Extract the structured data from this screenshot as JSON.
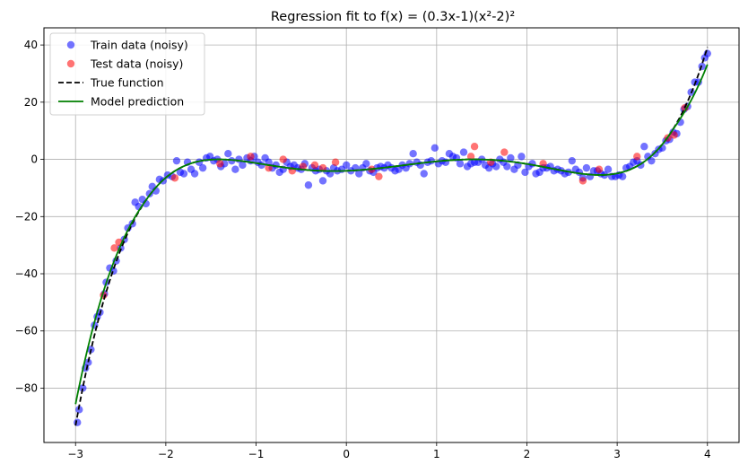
{
  "chart_data": {
    "type": "scatter",
    "title": "Regression fit to f(x) = (0.3x-1)(x²-2)²",
    "xlabel": "",
    "ylabel": "",
    "xlim": [
      -3.35,
      4.35
    ],
    "ylim": [
      -99,
      46
    ],
    "xticks": [
      -3,
      -2,
      -1,
      0,
      1,
      2,
      3,
      4
    ],
    "xtick_labels": [
      "−3",
      "−2",
      "−1",
      "0",
      "1",
      "2",
      "3",
      "4"
    ],
    "yticks": [
      -80,
      -60,
      -40,
      -20,
      0,
      20,
      40
    ],
    "ytick_labels": [
      "−80",
      "−60",
      "−40",
      "−20",
      "0",
      "20",
      "40"
    ],
    "grid": true,
    "legend_position": "top-left",
    "colors": {
      "train": "#0000ff",
      "test": "#ff0000",
      "true": "#000000",
      "model": "#008000",
      "grid": "#b0b0b0"
    },
    "series": [
      {
        "name": "Train data (noisy)",
        "kind": "scatter",
        "points": [
          [
            -2.98,
            -92
          ],
          [
            -2.96,
            -87.5
          ],
          [
            -2.92,
            -80
          ],
          [
            -2.89,
            -73
          ],
          [
            -2.86,
            -71
          ],
          [
            -2.83,
            -66.5
          ],
          [
            -2.79,
            -58
          ],
          [
            -2.76,
            -55
          ],
          [
            -2.73,
            -53.5
          ],
          [
            -2.68,
            -47
          ],
          [
            -2.66,
            -43
          ],
          [
            -2.62,
            -38
          ],
          [
            -2.58,
            -39
          ],
          [
            -2.55,
            -35.5
          ],
          [
            -2.5,
            -31
          ],
          [
            -2.46,
            -28
          ],
          [
            -2.42,
            -24
          ],
          [
            -2.37,
            -22.5
          ],
          [
            -2.34,
            -15
          ],
          [
            -2.3,
            -16.5
          ],
          [
            -2.26,
            -14
          ],
          [
            -2.22,
            -15.5
          ],
          [
            -2.18,
            -12
          ],
          [
            -2.15,
            -9.5
          ],
          [
            -2.11,
            -11
          ],
          [
            -2.07,
            -7
          ],
          [
            -2.03,
            -7.5
          ],
          [
            -1.98,
            -5.5
          ],
          [
            -1.93,
            -6
          ],
          [
            -1.88,
            -0.5
          ],
          [
            -1.84,
            -4.5
          ],
          [
            -1.8,
            -5
          ],
          [
            -1.76,
            -1
          ],
          [
            -1.72,
            -3.5
          ],
          [
            -1.68,
            -5
          ],
          [
            -1.63,
            -1
          ],
          [
            -1.59,
            -3
          ],
          [
            -1.55,
            0.5
          ],
          [
            -1.51,
            1
          ],
          [
            -1.47,
            -0.5
          ],
          [
            -1.43,
            0
          ],
          [
            -1.39,
            -2.5
          ],
          [
            -1.35,
            -1.5
          ],
          [
            -1.31,
            2
          ],
          [
            -1.27,
            -0.5
          ],
          [
            -1.23,
            -3.5
          ],
          [
            -1.19,
            0
          ],
          [
            -1.15,
            -2
          ],
          [
            -1.1,
            0.5
          ],
          [
            -1.06,
            -0.5
          ],
          [
            -1.02,
            1
          ],
          [
            -0.98,
            -1
          ],
          [
            -0.94,
            -2
          ],
          [
            -0.9,
            0.5
          ],
          [
            -0.86,
            -1
          ],
          [
            -0.82,
            -3
          ],
          [
            -0.78,
            -2
          ],
          [
            -0.74,
            -4.5
          ],
          [
            -0.7,
            -3.5
          ],
          [
            -0.66,
            -1
          ],
          [
            -0.62,
            -2.5
          ],
          [
            -0.58,
            -2
          ],
          [
            -0.54,
            -3
          ],
          [
            -0.5,
            -3.5
          ],
          [
            -0.46,
            -1.5
          ],
          [
            -0.42,
            -9
          ],
          [
            -0.38,
            -3
          ],
          [
            -0.34,
            -4
          ],
          [
            -0.3,
            -3.5
          ],
          [
            -0.26,
            -7.5
          ],
          [
            -0.22,
            -4
          ],
          [
            -0.18,
            -5
          ],
          [
            -0.14,
            -3
          ],
          [
            -0.1,
            -4
          ],
          [
            -0.05,
            -3.5
          ],
          [
            0.0,
            -2
          ],
          [
            0.05,
            -4
          ],
          [
            0.1,
            -3
          ],
          [
            0.14,
            -5
          ],
          [
            0.18,
            -3
          ],
          [
            0.22,
            -1.5
          ],
          [
            0.26,
            -4
          ],
          [
            0.3,
            -4.5
          ],
          [
            0.34,
            -3
          ],
          [
            0.38,
            -2.5
          ],
          [
            0.42,
            -3
          ],
          [
            0.46,
            -2
          ],
          [
            0.5,
            -3
          ],
          [
            0.54,
            -4
          ],
          [
            0.58,
            -3.5
          ],
          [
            0.62,
            -2
          ],
          [
            0.66,
            -3
          ],
          [
            0.7,
            -1.5
          ],
          [
            0.74,
            2
          ],
          [
            0.78,
            -1
          ],
          [
            0.82,
            -2
          ],
          [
            0.86,
            -5
          ],
          [
            0.9,
            -1
          ],
          [
            0.94,
            -0.5
          ],
          [
            0.98,
            4
          ],
          [
            1.02,
            -1.5
          ],
          [
            1.06,
            -0.5
          ],
          [
            1.1,
            -1
          ],
          [
            1.14,
            2
          ],
          [
            1.18,
            1
          ],
          [
            1.22,
            0.5
          ],
          [
            1.26,
            -1.5
          ],
          [
            1.3,
            2.5
          ],
          [
            1.34,
            -2.5
          ],
          [
            1.38,
            -1.5
          ],
          [
            1.42,
            -1
          ],
          [
            1.46,
            -1
          ],
          [
            1.5,
            0
          ],
          [
            1.54,
            -2
          ],
          [
            1.58,
            -3
          ],
          [
            1.62,
            -1.5
          ],
          [
            1.66,
            -2.5
          ],
          [
            1.7,
            0
          ],
          [
            1.74,
            -1
          ],
          [
            1.78,
            -2.5
          ],
          [
            1.82,
            0.5
          ],
          [
            1.86,
            -3.5
          ],
          [
            1.9,
            -2
          ],
          [
            1.94,
            1
          ],
          [
            1.98,
            -4.5
          ],
          [
            2.02,
            -2.5
          ],
          [
            2.06,
            -1.5
          ],
          [
            2.1,
            -5
          ],
          [
            2.14,
            -4.5
          ],
          [
            2.18,
            -3
          ],
          [
            2.22,
            -3
          ],
          [
            2.26,
            -2.5
          ],
          [
            2.3,
            -4
          ],
          [
            2.34,
            -3.5
          ],
          [
            2.38,
            -4
          ],
          [
            2.42,
            -5
          ],
          [
            2.46,
            -4.5
          ],
          [
            2.5,
            -0.5
          ],
          [
            2.54,
            -3.5
          ],
          [
            2.58,
            -4.5
          ],
          [
            2.62,
            -6.5
          ],
          [
            2.66,
            -3
          ],
          [
            2.7,
            -6
          ],
          [
            2.74,
            -4
          ],
          [
            2.78,
            -4
          ],
          [
            2.82,
            -5
          ],
          [
            2.86,
            -5.5
          ],
          [
            2.9,
            -3.5
          ],
          [
            2.94,
            -6
          ],
          [
            2.98,
            -6
          ],
          [
            3.02,
            -5.5
          ],
          [
            3.06,
            -6
          ],
          [
            3.1,
            -3
          ],
          [
            3.14,
            -2.5
          ],
          [
            3.18,
            -1
          ],
          [
            3.22,
            -0.5
          ],
          [
            3.26,
            -2
          ],
          [
            3.3,
            4.5
          ],
          [
            3.34,
            1
          ],
          [
            3.38,
            -0.5
          ],
          [
            3.42,
            2
          ],
          [
            3.46,
            3.5
          ],
          [
            3.5,
            4
          ],
          [
            3.54,
            6.5
          ],
          [
            3.58,
            7
          ],
          [
            3.62,
            9.5
          ],
          [
            3.66,
            9
          ],
          [
            3.7,
            13
          ],
          [
            3.74,
            17.5
          ],
          [
            3.78,
            18.5
          ],
          [
            3.82,
            23.5
          ],
          [
            3.86,
            27
          ],
          [
            3.9,
            27
          ],
          [
            3.94,
            32.5
          ],
          [
            3.97,
            35.5
          ],
          [
            4.0,
            37
          ]
        ]
      },
      {
        "name": "Test data (noisy)",
        "kind": "scatter",
        "points": [
          [
            -2.69,
            -47.5
          ],
          [
            -2.57,
            -31
          ],
          [
            -2.52,
            -29
          ],
          [
            -1.9,
            -6.5
          ],
          [
            -1.4,
            -1.5
          ],
          [
            -1.06,
            1
          ],
          [
            -0.86,
            -3
          ],
          [
            -0.7,
            0
          ],
          [
            -0.6,
            -4
          ],
          [
            -0.48,
            -2.5
          ],
          [
            -0.35,
            -2
          ],
          [
            -0.26,
            -3
          ],
          [
            -0.12,
            -1
          ],
          [
            0.28,
            -3.5
          ],
          [
            0.36,
            -6
          ],
          [
            1.38,
            1
          ],
          [
            1.42,
            4.5
          ],
          [
            1.6,
            -1
          ],
          [
            1.75,
            2.5
          ],
          [
            2.18,
            -1.5
          ],
          [
            2.62,
            -7.5
          ],
          [
            2.8,
            -3.5
          ],
          [
            3.22,
            1
          ],
          [
            3.56,
            7.5
          ],
          [
            3.63,
            8.5
          ],
          [
            3.75,
            18
          ]
        ]
      },
      {
        "name": "True function",
        "kind": "line",
        "style": "dashed",
        "fn": "true"
      },
      {
        "name": "Model prediction",
        "kind": "line",
        "style": "solid",
        "fn": "model"
      }
    ]
  }
}
